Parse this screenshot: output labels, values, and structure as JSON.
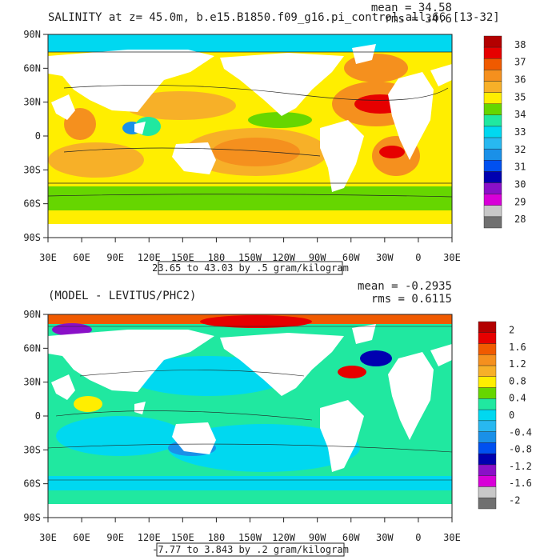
{
  "chart_data": [
    {
      "type": "heatmap",
      "title": "SALINITY at z=  45.0m, b.e15.B1850.f09_g16.pi_control.all.66 [13-32]",
      "stats": {
        "mean": "mean = 34.58",
        "rms": "rms = 34.6"
      },
      "subtitle": "23.65 to 43.03 by .5 gram/kilogram",
      "x_ticks": [
        "30E",
        "60E",
        "90E",
        "120E",
        "150E",
        "180",
        "150W",
        "120W",
        "90W",
        "60W",
        "30W",
        "0",
        "30E"
      ],
      "y_ticks": [
        "90N",
        "60N",
        "30N",
        "0",
        "30S",
        "60S",
        "90S"
      ],
      "colorbar_labels": [
        "38",
        "37",
        "36",
        "35",
        "34",
        "33",
        "32",
        "31",
        "30",
        "29",
        "28"
      ],
      "colors": [
        "#b30000",
        "#e60000",
        "#f05a00",
        "#f5901e",
        "#f7b028",
        "#ffee00",
        "#66d600",
        "#20e8a0",
        "#00d8f0",
        "#28b8f0",
        "#1a90e8",
        "#0050f0",
        "#0000b0",
        "#8a10c8",
        "#d800d8",
        "#c8c8c8",
        "#707070"
      ]
    },
    {
      "type": "heatmap",
      "title": "(MODEL - LEVITUS/PHC2)",
      "stats": {
        "mean": "mean = -0.2935",
        "rms": "rms = 0.6115"
      },
      "subtitle": "-7.77 to 3.843 by .2 gram/kilogram",
      "x_ticks": [
        "30E",
        "60E",
        "90E",
        "120E",
        "150E",
        "180",
        "150W",
        "120W",
        "90W",
        "60W",
        "30W",
        "0",
        "30E"
      ],
      "y_ticks": [
        "90N",
        "60N",
        "30N",
        "0",
        "30S",
        "60S",
        "90S"
      ],
      "colorbar_labels": [
        "2",
        "1.6",
        "1.2",
        "0.8",
        "0.4",
        "0",
        "-0.4",
        "-0.8",
        "-1.2",
        "-1.6",
        "-2"
      ],
      "colors": [
        "#b30000",
        "#e60000",
        "#f05a00",
        "#f5901e",
        "#f7b028",
        "#ffee00",
        "#66d600",
        "#20e8a0",
        "#00d8f0",
        "#28b8f0",
        "#1a90e8",
        "#0050f0",
        "#0000b0",
        "#8a10c8",
        "#d800d8",
        "#c8c8c8",
        "#707070"
      ]
    }
  ]
}
